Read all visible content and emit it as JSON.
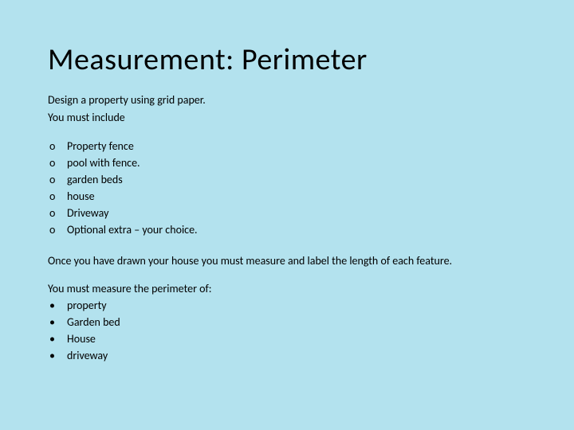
{
  "title": "Measurement: Perimeter",
  "intro": {
    "line1": "Design a property using grid paper.",
    "line2": "You must include"
  },
  "includeList": {
    "marker": "o",
    "items": [
      "Property fence",
      "pool with fence.",
      "garden beds",
      "house",
      "Driveway",
      "Optional extra – your choice."
    ]
  },
  "midParagraph": "Once you have drawn your house you must measure and label the length of each feature.",
  "perimeterLabel": "You must measure the perimeter of:",
  "perimeterList": {
    "marker": "•",
    "items": [
      " property",
      "Garden bed",
      "House",
      "driveway"
    ]
  },
  "colors": {
    "background": "#b3e2ee",
    "text": "#000000"
  },
  "typography": {
    "title_fontsize": 38,
    "body_fontsize": 14,
    "font_family": "Calibri"
  }
}
